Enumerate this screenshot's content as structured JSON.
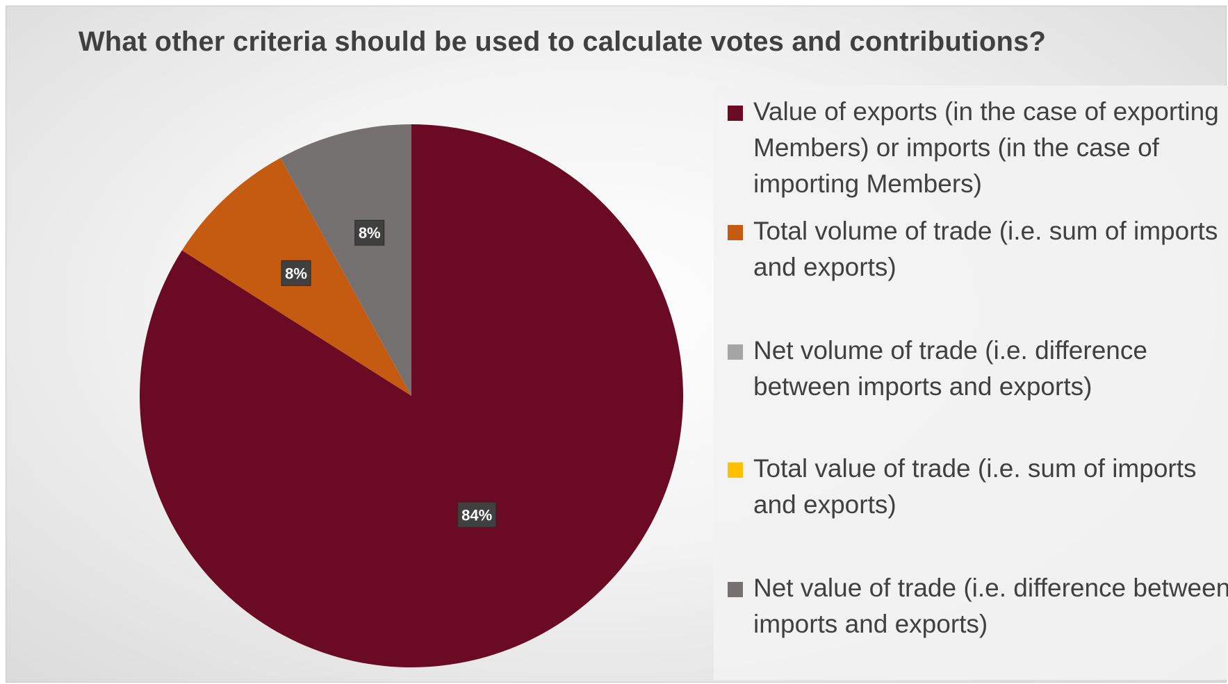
{
  "chart_data": {
    "type": "pie",
    "title": "What other criteria should be used to calculate votes and contributions?",
    "categories": [
      "Value of exports (in the case of exporting Members) or imports (in the case of importing Members)",
      "Total volume of trade (i.e. sum of imports and exports)",
      "Net volume of trade (i.e. difference between imports and exports)",
      "Total value of trade (i.e. sum of imports and exports)",
      "Net value of trade (i.e. difference between imports and exports)"
    ],
    "values": [
      84,
      8,
      0,
      0,
      8
    ],
    "data_labels": [
      "84%",
      "8%",
      "",
      "",
      "8%"
    ],
    "colors": [
      "#6B0A24",
      "#C55A11",
      "#A5A5A5",
      "#FFC000",
      "#767171"
    ],
    "unit": "%",
    "legend_position": "right"
  }
}
